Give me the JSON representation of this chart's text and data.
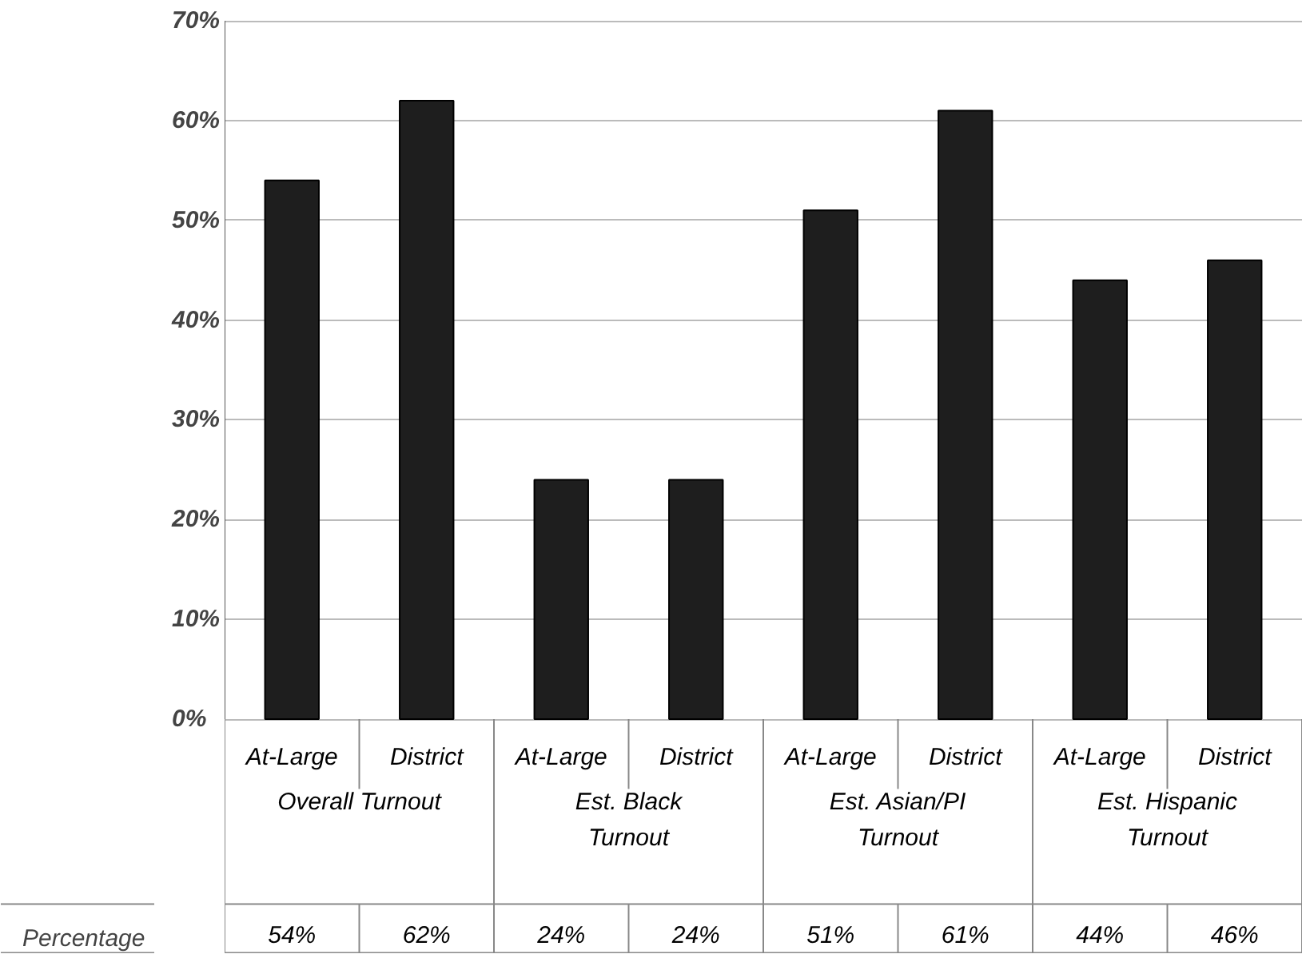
{
  "chart_data": {
    "type": "bar",
    "categories": [
      "At-Large",
      "District",
      "At-Large",
      "District",
      "At-Large",
      "District",
      "At-Large",
      "District"
    ],
    "series": [
      {
        "name": "Percentage",
        "color": "#1e1e1e",
        "values": [
          54,
          62,
          24,
          24,
          51,
          61,
          44,
          46
        ],
        "value_labels": [
          "54%",
          "62%",
          "24%",
          "24%",
          "51%",
          "61%",
          "44%",
          "46%"
        ]
      }
    ],
    "annotations": [
      "Overall Turnout",
      "Est. Black Turnout",
      "Est. Asian/PI Turnout",
      "Est. Hispanic Turnout"
    ],
    "ylim": [
      0,
      70
    ],
    "yticks": [
      {
        "value": 0,
        "label": "0%"
      },
      {
        "value": 10,
        "label": "10%"
      },
      {
        "value": 20,
        "label": "20%"
      },
      {
        "value": 30,
        "label": "30%"
      },
      {
        "value": 40,
        "label": "40%"
      },
      {
        "value": 50,
        "label": "50%"
      },
      {
        "value": 60,
        "label": "60%"
      },
      {
        "value": 70,
        "label": "70%"
      }
    ],
    "grid": "y",
    "legend": "bottom left"
  }
}
